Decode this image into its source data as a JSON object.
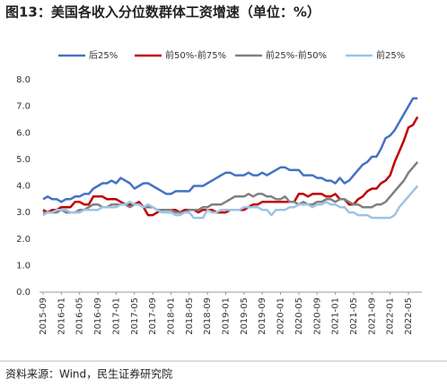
{
  "chart_data": {
    "type": "line",
    "title": "图13：美国各收入分位数群体工资增速（单位：%）",
    "source": "资料来源：Wind，民生证券研究院",
    "categories": [
      "2015-09",
      null,
      null,
      null,
      "2016-01",
      null,
      null,
      null,
      "2016-05",
      null,
      null,
      null,
      "2016-09",
      null,
      null,
      null,
      "2017-01",
      null,
      null,
      null,
      "2017-05",
      null,
      null,
      null,
      "2017-09",
      null,
      null,
      null,
      "2018-01",
      null,
      null,
      null,
      "2018-05",
      null,
      null,
      null,
      "2018-09",
      null,
      null,
      null,
      "2019-01",
      null,
      null,
      null,
      "2019-05",
      null,
      null,
      null,
      "2019-09",
      null,
      null,
      null,
      "2020-01",
      null,
      null,
      null,
      "2020-05",
      null,
      null,
      null,
      "2020-09",
      null,
      null,
      null,
      "2021-01",
      null,
      null,
      null,
      "2021-05",
      null,
      null,
      null,
      "2021-09",
      null,
      null,
      null,
      "2022-01",
      null,
      null,
      null,
      "2022-05",
      null,
      null
    ],
    "series": [
      {
        "name": "后25%",
        "color": "#4472c4",
        "values": [
          3.5,
          3.6,
          3.5,
          3.5,
          3.4,
          3.5,
          3.5,
          3.6,
          3.6,
          3.7,
          3.7,
          3.9,
          4.0,
          4.1,
          4.1,
          4.2,
          4.1,
          4.3,
          4.2,
          4.1,
          3.9,
          4.0,
          4.1,
          4.1,
          4.0,
          3.9,
          3.8,
          3.7,
          3.7,
          3.8,
          3.8,
          3.8,
          3.8,
          4.0,
          4.0,
          4.0,
          4.1,
          4.2,
          4.3,
          4.4,
          4.5,
          4.5,
          4.4,
          4.4,
          4.4,
          4.5,
          4.4,
          4.4,
          4.5,
          4.4,
          4.5,
          4.6,
          4.7,
          4.7,
          4.6,
          4.6,
          4.6,
          4.4,
          4.4,
          4.4,
          4.3,
          4.3,
          4.2,
          4.2,
          4.1,
          4.3,
          4.1,
          4.2,
          4.4,
          4.6,
          4.8,
          4.9,
          5.1,
          5.1,
          5.4,
          5.8,
          5.9,
          6.1,
          6.4,
          6.7,
          7.0,
          7.3,
          7.3
        ]
      },
      {
        "name": "前50%-前75%",
        "color": "#c00000",
        "values": [
          3.1,
          3.0,
          3.1,
          3.1,
          3.2,
          3.2,
          3.2,
          3.4,
          3.4,
          3.3,
          3.3,
          3.6,
          3.6,
          3.6,
          3.5,
          3.5,
          3.5,
          3.4,
          3.3,
          3.3,
          3.3,
          3.4,
          3.2,
          2.9,
          2.9,
          3.0,
          3.1,
          3.1,
          3.1,
          3.1,
          3.0,
          3.1,
          3.1,
          3.1,
          3.0,
          3.1,
          3.1,
          3.1,
          3.0,
          3.0,
          3.0,
          3.1,
          3.1,
          3.1,
          3.1,
          3.2,
          3.3,
          3.3,
          3.4,
          3.4,
          3.4,
          3.4,
          3.4,
          3.4,
          3.4,
          3.4,
          3.7,
          3.7,
          3.6,
          3.7,
          3.7,
          3.7,
          3.6,
          3.6,
          3.7,
          3.5,
          3.5,
          3.3,
          3.3,
          3.5,
          3.6,
          3.8,
          3.9,
          3.9,
          4.1,
          4.2,
          4.4,
          4.9,
          5.3,
          5.7,
          6.2,
          6.3,
          6.6
        ]
      },
      {
        "name": "前25%-前50%",
        "color": "#808080",
        "values": [
          3.0,
          3.0,
          3.0,
          3.0,
          3.1,
          3.0,
          3.0,
          3.0,
          3.1,
          3.1,
          3.2,
          3.3,
          3.3,
          3.2,
          3.2,
          3.3,
          3.3,
          3.3,
          3.3,
          3.2,
          3.3,
          3.3,
          3.2,
          3.2,
          3.2,
          3.1,
          3.1,
          3.1,
          3.1,
          3.0,
          3.0,
          3.0,
          3.1,
          3.1,
          3.1,
          3.2,
          3.2,
          3.3,
          3.3,
          3.3,
          3.4,
          3.5,
          3.6,
          3.6,
          3.6,
          3.7,
          3.6,
          3.7,
          3.7,
          3.6,
          3.6,
          3.5,
          3.5,
          3.6,
          3.4,
          3.4,
          3.3,
          3.4,
          3.3,
          3.3,
          3.4,
          3.4,
          3.5,
          3.5,
          3.4,
          3.5,
          3.5,
          3.4,
          3.3,
          3.3,
          3.2,
          3.2,
          3.2,
          3.3,
          3.3,
          3.4,
          3.6,
          3.8,
          4.0,
          4.2,
          4.5,
          4.7,
          4.9
        ]
      },
      {
        "name": "前25%",
        "color": "#9dc3e6",
        "values": [
          2.9,
          3.0,
          3.0,
          3.1,
          3.1,
          3.1,
          3.0,
          3.0,
          3.0,
          3.1,
          3.1,
          3.1,
          3.1,
          3.2,
          3.2,
          3.2,
          3.2,
          3.3,
          3.3,
          3.4,
          3.3,
          3.3,
          3.2,
          3.3,
          3.2,
          3.1,
          3.0,
          3.0,
          3.0,
          2.9,
          2.9,
          3.0,
          3.0,
          2.8,
          2.8,
          2.8,
          3.1,
          3.0,
          3.0,
          3.1,
          3.1,
          3.1,
          3.1,
          3.1,
          3.2,
          3.2,
          3.2,
          3.2,
          3.1,
          3.1,
          2.9,
          3.1,
          3.1,
          3.1,
          3.2,
          3.2,
          3.3,
          3.3,
          3.3,
          3.2,
          3.3,
          3.3,
          3.4,
          3.3,
          3.3,
          3.2,
          3.2,
          3.0,
          3.0,
          2.9,
          2.9,
          2.9,
          2.8,
          2.8,
          2.8,
          2.8,
          2.8,
          2.9,
          3.2,
          3.4,
          3.6,
          3.8,
          4.0
        ]
      }
    ],
    "ylim": [
      0,
      8
    ],
    "yticks": [
      {
        "value": 0,
        "label": "0.0"
      },
      {
        "value": 1,
        "label": "1.0"
      },
      {
        "value": 2,
        "label": "2.0"
      },
      {
        "value": 3,
        "label": "3.0"
      },
      {
        "value": 4,
        "label": "4.0"
      },
      {
        "value": 5,
        "label": "5.0"
      },
      {
        "value": 6,
        "label": "6.0"
      },
      {
        "value": 7,
        "label": "7.0"
      },
      {
        "value": 8,
        "label": "8.0"
      }
    ],
    "grid": false,
    "legend": "top"
  }
}
